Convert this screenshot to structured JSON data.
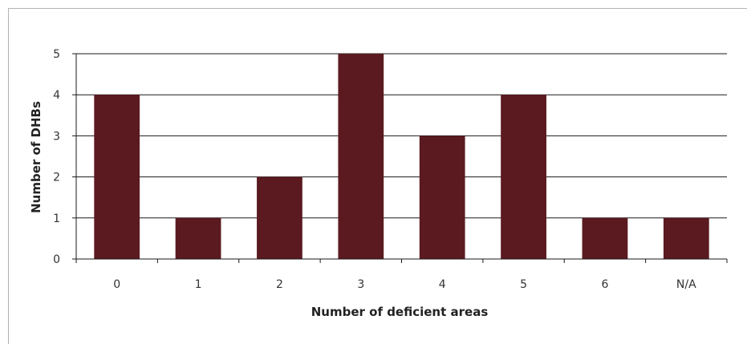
{
  "chart_data": {
    "type": "bar",
    "categories": [
      "0",
      "1",
      "2",
      "3",
      "4",
      "5",
      "6",
      "N/A"
    ],
    "values": [
      4,
      1,
      2,
      5,
      3,
      4,
      1,
      1
    ],
    "title": "",
    "xlabel": "Number of deficient areas",
    "ylabel": "Number of DHBs",
    "ylim": [
      0,
      5
    ],
    "yticks": [
      "0",
      "1",
      "2",
      "3",
      "4",
      "5"
    ],
    "grid": true,
    "bar_color": "#5a1a1f"
  }
}
